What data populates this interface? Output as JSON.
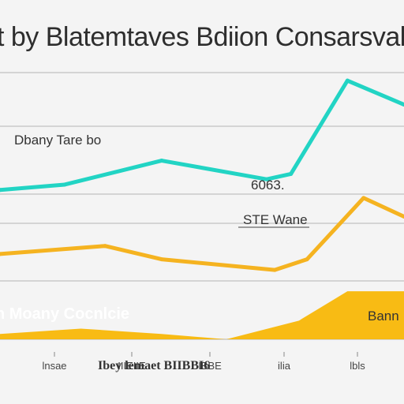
{
  "chart_data": {
    "type": "line",
    "title": "t by Blatemtaves Bdiion Consarsval",
    "x": [
      "",
      "",
      "",
      "",
      "",
      "",
      "",
      ""
    ],
    "x_tick_labels": [
      "lnsae",
      "IIIEIIE",
      "IBBE",
      "ilia",
      "lbls"
    ],
    "xlabel": "Ibey lemaet BIIBBI6",
    "ylabel": "",
    "ylim": [
      0,
      100
    ],
    "grid": true,
    "series": [
      {
        "name": "",
        "color": "#22d4c4",
        "style": "line",
        "points": [
          [
            0,
            56
          ],
          [
            0.8,
            58
          ],
          [
            2,
            67
          ],
          [
            3.3,
            60
          ],
          [
            3.6,
            62
          ],
          [
            4.3,
            97
          ],
          [
            5,
            88
          ]
        ]
      },
      {
        "name": "",
        "color": "#f5b320",
        "style": "line",
        "points": [
          [
            0,
            32
          ],
          [
            1.3,
            35
          ],
          [
            2,
            30
          ],
          [
            3.4,
            26
          ],
          [
            3.8,
            30
          ],
          [
            4.5,
            53
          ],
          [
            5,
            46
          ]
        ]
      },
      {
        "name": "",
        "color": "#f7b500",
        "style": "area",
        "points": [
          [
            0,
            2
          ],
          [
            1,
            4
          ],
          [
            2,
            2
          ],
          [
            2.8,
            0
          ],
          [
            3.7,
            7
          ],
          [
            4.3,
            18
          ],
          [
            5,
            18
          ]
        ]
      }
    ],
    "annotations": [
      {
        "text": "Dbany Tare bo",
        "color": "#333333"
      },
      {
        "text": "6063.",
        "color": "#333333"
      },
      {
        "text": "STE Wane",
        "color": "#333333"
      },
      {
        "text": "n Moany Cocnlcie",
        "color": "#ffffff"
      },
      {
        "text": "Bann",
        "color": "#333333"
      }
    ]
  }
}
